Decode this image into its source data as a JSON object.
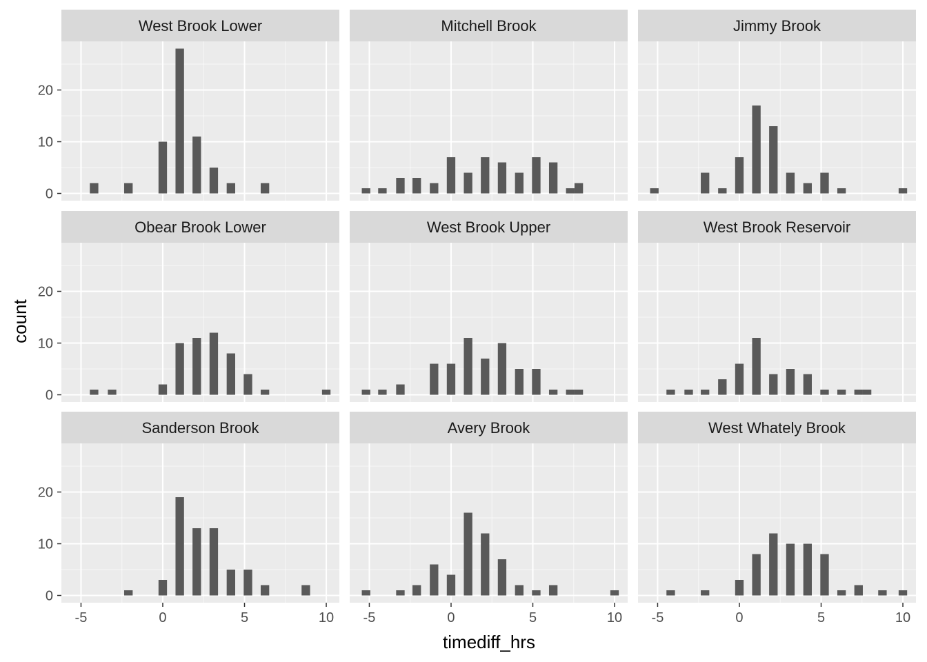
{
  "chart_data": {
    "type": "bar",
    "subtype": "faceted-histogram",
    "xlabel": "timediff_hrs",
    "ylabel": "count",
    "xlim": [
      -6.2,
      10.8
    ],
    "ylim": [
      -1.4,
      29.4
    ],
    "x_ticks": [
      -5,
      0,
      5,
      10
    ],
    "x_tick_labels": [
      "-5",
      "0",
      "5",
      "10"
    ],
    "y_ticks": [
      0,
      10,
      20
    ],
    "y_tick_labels": [
      "0",
      "10",
      "20"
    ],
    "bin_width": 1.04,
    "bar_width": 0.52,
    "grid": true,
    "colors": {
      "bar": "#595959",
      "panel_bg": "#ebebeb",
      "strip_bg": "#d9d9d9",
      "grid": "#ffffff"
    },
    "layout": {
      "rows": 3,
      "cols": 3,
      "scales": "fixed"
    },
    "panels": [
      {
        "title": "West Brook Lower",
        "bars": [
          {
            "x": -4.2,
            "count": 2
          },
          {
            "x": -2.1,
            "count": 2
          },
          {
            "x": 0,
            "count": 10
          },
          {
            "x": 1.04,
            "count": 28
          },
          {
            "x": 2.08,
            "count": 11
          },
          {
            "x": 3.12,
            "count": 5
          },
          {
            "x": 4.17,
            "count": 2
          },
          {
            "x": 6.25,
            "count": 2
          }
        ]
      },
      {
        "title": "Mitchell Brook",
        "bars": [
          {
            "x": -5.2,
            "count": 1
          },
          {
            "x": -4.2,
            "count": 1
          },
          {
            "x": -3.1,
            "count": 3
          },
          {
            "x": -2.1,
            "count": 3
          },
          {
            "x": -1.04,
            "count": 2
          },
          {
            "x": 0,
            "count": 7
          },
          {
            "x": 1.04,
            "count": 4
          },
          {
            "x": 2.08,
            "count": 7
          },
          {
            "x": 3.12,
            "count": 6
          },
          {
            "x": 4.17,
            "count": 4
          },
          {
            "x": 5.21,
            "count": 7
          },
          {
            "x": 6.25,
            "count": 6
          },
          {
            "x": 7.29,
            "count": 1
          },
          {
            "x": 7.81,
            "count": 2
          }
        ]
      },
      {
        "title": "Jimmy Brook",
        "bars": [
          {
            "x": -5.2,
            "count": 1
          },
          {
            "x": -2.1,
            "count": 4
          },
          {
            "x": -1.04,
            "count": 1
          },
          {
            "x": 0,
            "count": 7
          },
          {
            "x": 1.04,
            "count": 17
          },
          {
            "x": 2.08,
            "count": 13
          },
          {
            "x": 3.12,
            "count": 4
          },
          {
            "x": 4.17,
            "count": 2
          },
          {
            "x": 5.21,
            "count": 4
          },
          {
            "x": 6.25,
            "count": 1
          },
          {
            "x": 10.0,
            "count": 1
          }
        ]
      },
      {
        "title": "Obear Brook Lower",
        "bars": [
          {
            "x": -4.2,
            "count": 1
          },
          {
            "x": -3.1,
            "count": 1
          },
          {
            "x": 0,
            "count": 2
          },
          {
            "x": 1.04,
            "count": 10
          },
          {
            "x": 2.08,
            "count": 11
          },
          {
            "x": 3.12,
            "count": 12
          },
          {
            "x": 4.17,
            "count": 8
          },
          {
            "x": 5.21,
            "count": 4
          },
          {
            "x": 6.25,
            "count": 1
          },
          {
            "x": 10.0,
            "count": 1
          }
        ]
      },
      {
        "title": "West Brook Upper",
        "bars": [
          {
            "x": -5.2,
            "count": 1
          },
          {
            "x": -4.2,
            "count": 1
          },
          {
            "x": -3.1,
            "count": 2
          },
          {
            "x": -1.04,
            "count": 6
          },
          {
            "x": 0,
            "count": 6
          },
          {
            "x": 1.04,
            "count": 11
          },
          {
            "x": 2.08,
            "count": 7
          },
          {
            "x": 3.12,
            "count": 10
          },
          {
            "x": 4.17,
            "count": 5
          },
          {
            "x": 5.21,
            "count": 5
          },
          {
            "x": 6.25,
            "count": 1
          },
          {
            "x": 7.29,
            "count": 1
          },
          {
            "x": 7.81,
            "count": 1
          }
        ]
      },
      {
        "title": "West Brook Reservoir",
        "bars": [
          {
            "x": -4.2,
            "count": 1
          },
          {
            "x": -3.1,
            "count": 1
          },
          {
            "x": -2.1,
            "count": 1
          },
          {
            "x": -1.04,
            "count": 3
          },
          {
            "x": 0,
            "count": 6
          },
          {
            "x": 1.04,
            "count": 11
          },
          {
            "x": 2.08,
            "count": 4
          },
          {
            "x": 3.12,
            "count": 5
          },
          {
            "x": 4.17,
            "count": 4
          },
          {
            "x": 5.21,
            "count": 1
          },
          {
            "x": 6.25,
            "count": 1
          },
          {
            "x": 7.29,
            "count": 1
          },
          {
            "x": 7.81,
            "count": 1
          }
        ]
      },
      {
        "title": "Sanderson Brook",
        "bars": [
          {
            "x": -2.1,
            "count": 1
          },
          {
            "x": 0,
            "count": 3
          },
          {
            "x": 1.04,
            "count": 19
          },
          {
            "x": 2.08,
            "count": 13
          },
          {
            "x": 3.12,
            "count": 13
          },
          {
            "x": 4.17,
            "count": 5
          },
          {
            "x": 5.21,
            "count": 5
          },
          {
            "x": 6.25,
            "count": 2
          },
          {
            "x": 8.75,
            "count": 2
          }
        ]
      },
      {
        "title": "Avery Brook",
        "bars": [
          {
            "x": -5.2,
            "count": 1
          },
          {
            "x": -3.1,
            "count": 1
          },
          {
            "x": -2.1,
            "count": 2
          },
          {
            "x": -1.04,
            "count": 6
          },
          {
            "x": 0,
            "count": 4
          },
          {
            "x": 1.04,
            "count": 16
          },
          {
            "x": 2.08,
            "count": 12
          },
          {
            "x": 3.12,
            "count": 7
          },
          {
            "x": 4.17,
            "count": 2
          },
          {
            "x": 5.21,
            "count": 1
          },
          {
            "x": 6.25,
            "count": 2
          },
          {
            "x": 10.0,
            "count": 1
          }
        ]
      },
      {
        "title": "West Whately Brook",
        "bars": [
          {
            "x": -4.2,
            "count": 1
          },
          {
            "x": -2.1,
            "count": 1
          },
          {
            "x": 0,
            "count": 3
          },
          {
            "x": 1.04,
            "count": 8
          },
          {
            "x": 2.08,
            "count": 12
          },
          {
            "x": 3.12,
            "count": 10
          },
          {
            "x": 4.17,
            "count": 10
          },
          {
            "x": 5.21,
            "count": 8
          },
          {
            "x": 6.25,
            "count": 1
          },
          {
            "x": 7.29,
            "count": 2
          },
          {
            "x": 8.75,
            "count": 1
          },
          {
            "x": 10.0,
            "count": 1
          }
        ]
      }
    ]
  }
}
